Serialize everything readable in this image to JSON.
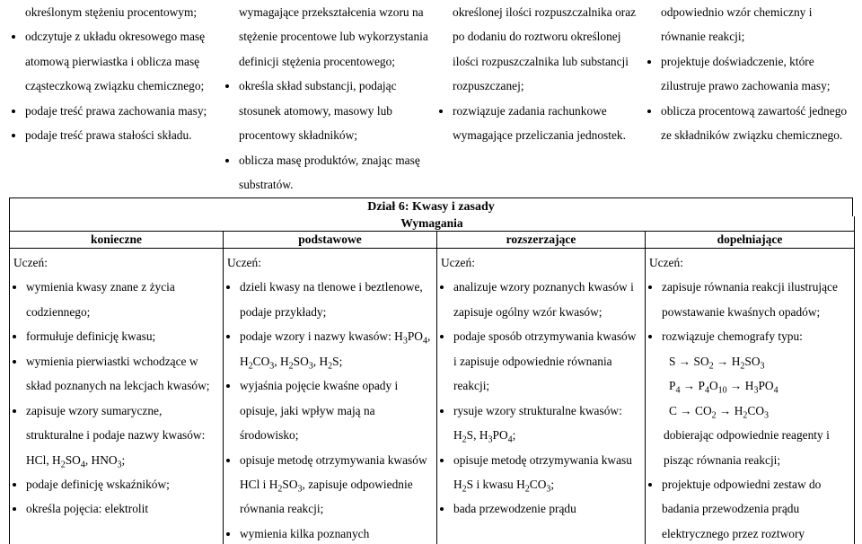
{
  "top": {
    "col1": {
      "items": [
        "określonym stężeniu procentowym;",
        "odczytuje z układu okresowego masę atomową pierwiastka i oblicza masę cząsteczkową związku chemicznego;",
        "podaje treść prawa zachowania masy;",
        "podaje treść prawa stałości składu."
      ]
    },
    "col2": {
      "items": [
        "wymagające przekształcenia wzoru na stężenie procentowe lub wykorzystania definicji stężenia procentowego;",
        "określa skład substancji, podając stosunek atomowy, masowy lub procentowy składników;",
        "oblicza masę produktów, znając masę substratów."
      ]
    },
    "col3": {
      "items": [
        "określonej ilości rozpuszczalnika oraz po dodaniu do roztworu określonej ilości rozpuszczalnika lub substancji rozpuszczanej;",
        "rozwiązuje zadania rachunkowe wymagające przeliczania jednostek."
      ]
    },
    "col4": {
      "items": [
        "odpowiednio wzór chemiczny i równanie reakcji;",
        "projektuje doświadczenie, które zilustruje prawo zachowania masy;",
        "oblicza procentową zawartość jednego ze składników związku chemicznego."
      ]
    }
  },
  "section": {
    "title": "Dział 6: Kwasy i zasady",
    "requirements": "Wymagania",
    "levels": [
      "konieczne",
      "podstawowe",
      "rozszerzające",
      "dopełniające"
    ],
    "student": "Uczeń:"
  },
  "bottom": {
    "col1": {
      "items": [
        "wymienia kwasy znane z życia codziennego;",
        "formułuje definicję kwasu;",
        "wymienia pierwiastki wchodzące w skład poznanych na lekcjach kwasów;",
        "zapisuje wzory sumaryczne, strukturalne i podaje nazwy kwasów: HCl, H₂SO₄, HNO₃;",
        "podaje definicję wskaźników;",
        "określa pojęcia: elektrolit"
      ]
    },
    "col2": {
      "items": [
        "dzieli kwasy na tlenowe i beztlenowe, podaje przykłady;",
        "podaje wzory i nazwy kwasów: H₃PO₄, H₂CO₃, H₂SO₃, H₂S;",
        "wyjaśnia pojęcie kwaśne opady i opisuje, jaki wpływ mają na środowisko;",
        "opisuje metodę otrzymywania kwasów HCl i H₂SO₃, zapisuje odpowiednie równania reakcji;",
        "wymienia kilka poznanych"
      ]
    },
    "col3": {
      "items": [
        "analizuje wzory poznanych kwasów i zapisuje ogólny wzór kwasów;",
        "podaje sposób otrzymywania kwasów i zapisuje odpowiednie równania reakcji;",
        "rysuje wzory strukturalne kwasów: H₂S, H₃PO₄;",
        "opisuje metodę otrzymywania kwasu H₂S i kwasu H₂CO₃;",
        "bada przewodzenie prądu"
      ]
    },
    "col4": {
      "items": [
        "zapisuje równania reakcji ilustrujące powstawanie kwaśnych opadów;",
        "rozwiązuje chemografy typu:",
        "__FORMULAE__",
        "projektuje odpowiedni zestaw do badania przewodzenia prądu elektrycznego przez roztwory"
      ],
      "formulae": [
        "S → SO₂ → H₂SO₃",
        "P₄ → P₄O₁₀ → H₃PO₄",
        "C → CO₂ → H₂CO₃"
      ],
      "reagent_note": "dobierając odpowiednie reagenty i pisząc równania reakcji;"
    }
  }
}
